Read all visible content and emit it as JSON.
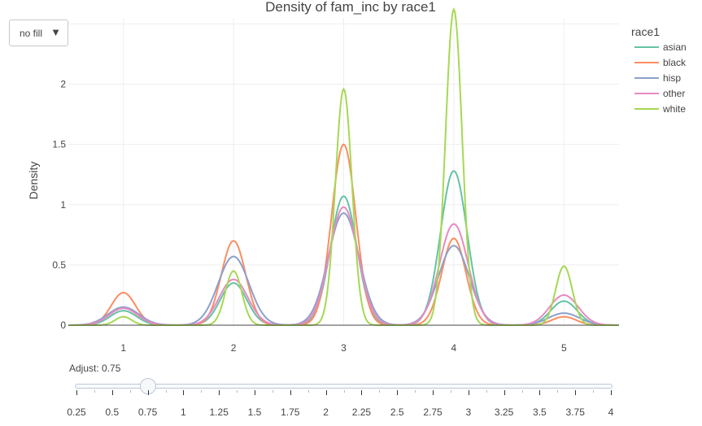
{
  "chart_data": {
    "type": "line",
    "title": "Density of fam_inc by race1",
    "xlabel": "fam_inc",
    "ylabel": "Density",
    "xlim": [
      0.5,
      5.5
    ],
    "ylim": [
      0,
      2.55
    ],
    "x_ticks": [
      1,
      2,
      3,
      4,
      5
    ],
    "y_ticks": [
      0,
      0.5,
      1,
      1.5,
      2,
      2.5
    ],
    "y_tick_labels": [
      "0",
      "0.5",
      "1",
      "1.5",
      "2",
      "2.5"
    ],
    "grid": true,
    "legend_title": "race1",
    "legend_position": "top-right",
    "series": [
      {
        "name": "asian",
        "color": "#66c2a5",
        "peaks": [
          0.12,
          0.35,
          1.07,
          1.28,
          0.2
        ],
        "width": 0.12
      },
      {
        "name": "black",
        "color": "#fc8d62",
        "peaks": [
          0.27,
          0.7,
          1.5,
          0.72,
          0.07
        ],
        "width": 0.11
      },
      {
        "name": "hisp",
        "color": "#8da0cb",
        "peaks": [
          0.15,
          0.57,
          0.93,
          0.66,
          0.1
        ],
        "width": 0.14
      },
      {
        "name": "other",
        "color": "#e78ac3",
        "peaks": [
          0.14,
          0.38,
          0.98,
          0.84,
          0.25
        ],
        "width": 0.13
      },
      {
        "name": "white",
        "color": "#a6d854",
        "peaks": [
          0.07,
          0.45,
          1.96,
          2.62,
          0.49
        ],
        "width": 0.075
      }
    ]
  },
  "controls": {
    "dropdown_label": "no fill",
    "dropdown_caret": "▼",
    "adjust_label": "Adjust: 0.75",
    "adjust_value": 0.75,
    "slider_min": 0.25,
    "slider_max": 4,
    "slider_ticks": [
      "0.25",
      "0.5",
      "0.75",
      "1",
      "1.25",
      "1.5",
      "1.75",
      "2",
      "2.25",
      "2.5",
      "2.75",
      "3",
      "3.25",
      "3.5",
      "3.75",
      "4"
    ]
  }
}
